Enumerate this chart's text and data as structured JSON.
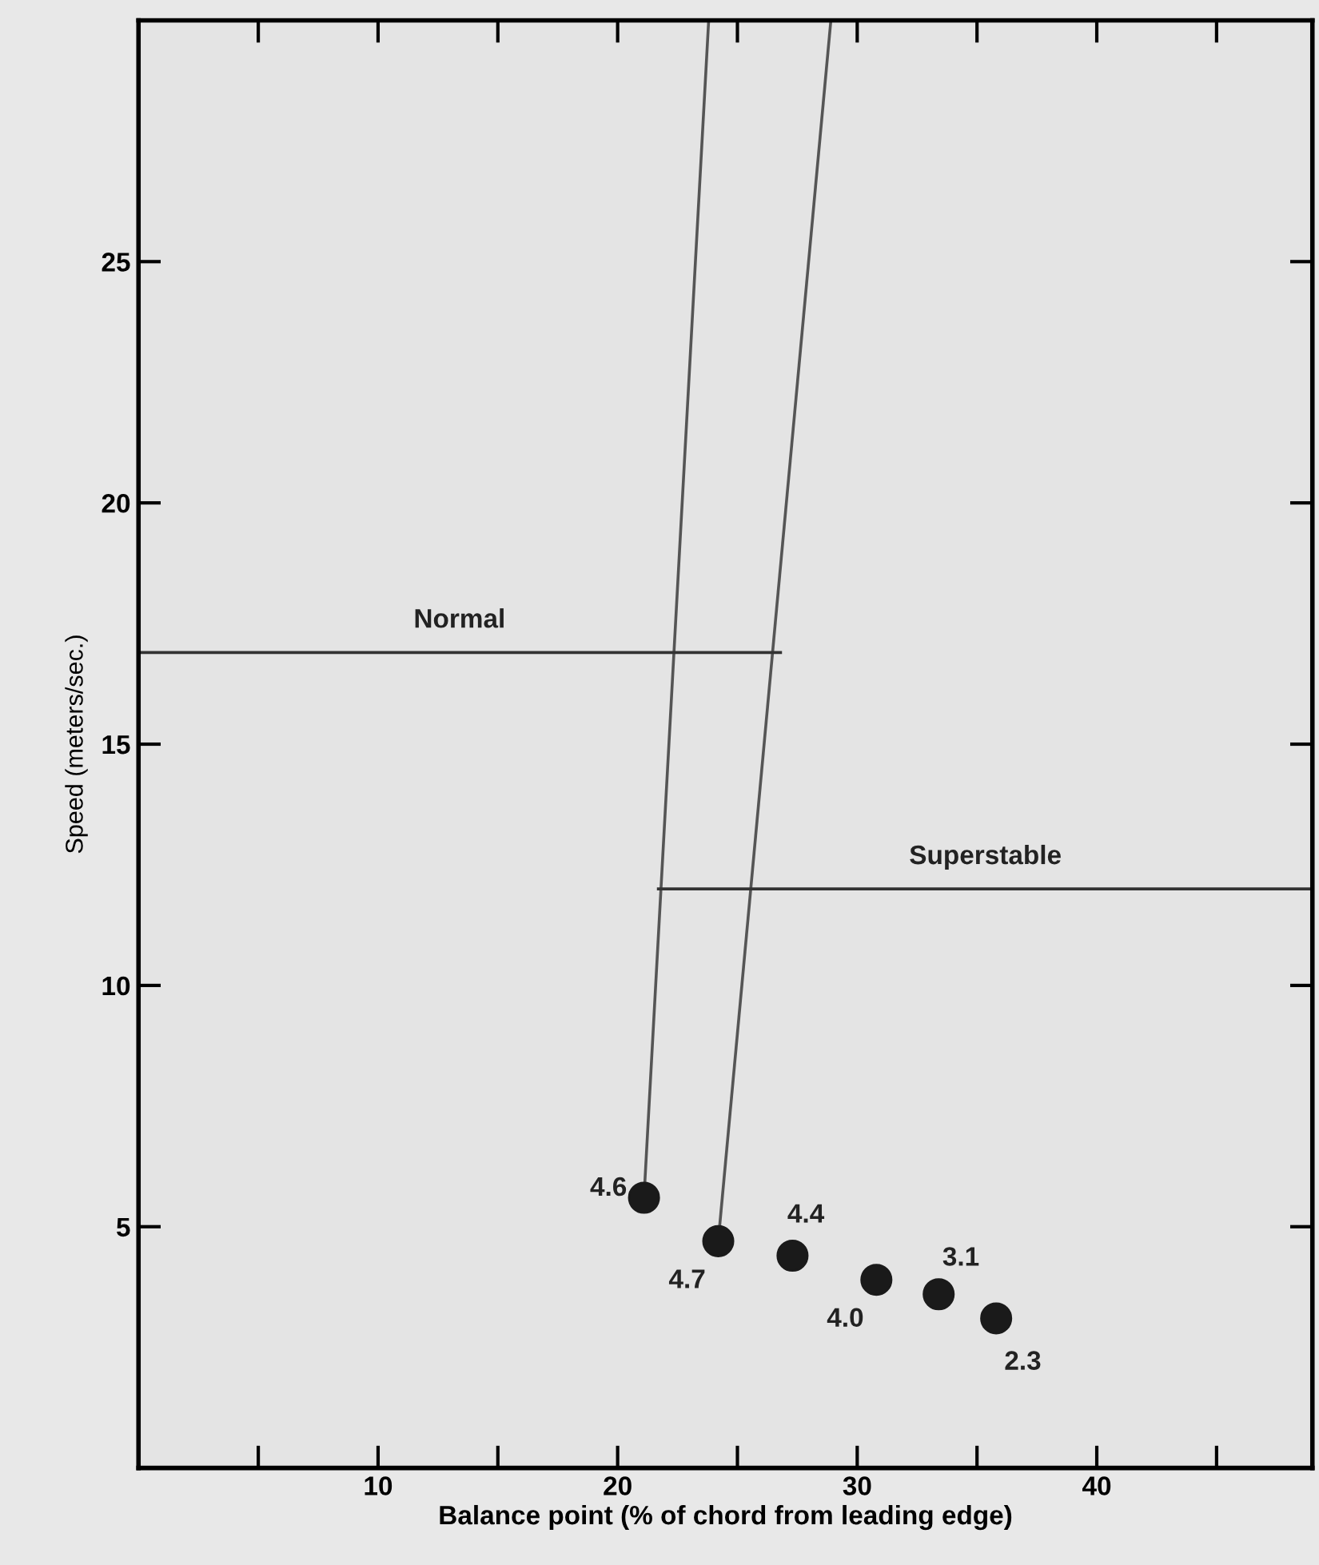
{
  "chart_data": {
    "type": "scatter",
    "xlabel": "Balance point (% of chord from leading edge)",
    "ylabel": "Speed (meters/sec.)",
    "xlim": [
      0,
      49
    ],
    "ylim": [
      0,
      30
    ],
    "xticks": [
      {
        "value": 5,
        "label": null
      },
      10,
      {
        "value": 15,
        "label": null
      },
      20,
      {
        "value": 25,
        "label": null
      },
      30,
      {
        "value": 35,
        "label": null
      },
      40,
      {
        "value": 45,
        "label": null
      }
    ],
    "yticks": [
      5,
      10,
      15,
      20,
      25
    ],
    "grid": false,
    "legend": false,
    "series": [
      {
        "color": "#1a1a1a",
        "marker": "circle",
        "x": [
          21.1,
          24.2,
          27.3,
          30.8,
          33.4,
          35.8
        ],
        "values": [
          5.6,
          4.7,
          4.4,
          3.9,
          3.6,
          3.1
        ]
      },
      {
        "type": "line",
        "color": "#555555",
        "x": [
          21.1,
          23.8
        ],
        "values": [
          5.6,
          30
        ]
      },
      {
        "type": "line",
        "color": "#555555",
        "x": [
          24.2,
          28.9
        ],
        "values": [
          4.7,
          30
        ]
      },
      {
        "type": "line",
        "name": "Normal",
        "color": "#333333",
        "x": [
          0,
          26.8
        ],
        "values": [
          16.9,
          16.9
        ]
      },
      {
        "type": "line",
        "name": "Superstable",
        "color": "#333333",
        "x": [
          21.7,
          49
        ],
        "values": [
          12,
          12
        ]
      }
    ],
    "annotations": [
      {
        "text": "4.6",
        "x": 21.1,
        "y": 5.6
      },
      {
        "text": "4.7",
        "x": 24.2,
        "y": 4.7
      },
      {
        "text": "4.4",
        "x": 27.3,
        "y": 4.4
      },
      {
        "text": "4.0",
        "x": 30.8,
        "y": 3.9
      },
      {
        "text": "3.1",
        "x": 33.4,
        "y": 3.6
      },
      {
        "text": "2.3",
        "x": 35.8,
        "y": 3.1
      }
    ]
  }
}
